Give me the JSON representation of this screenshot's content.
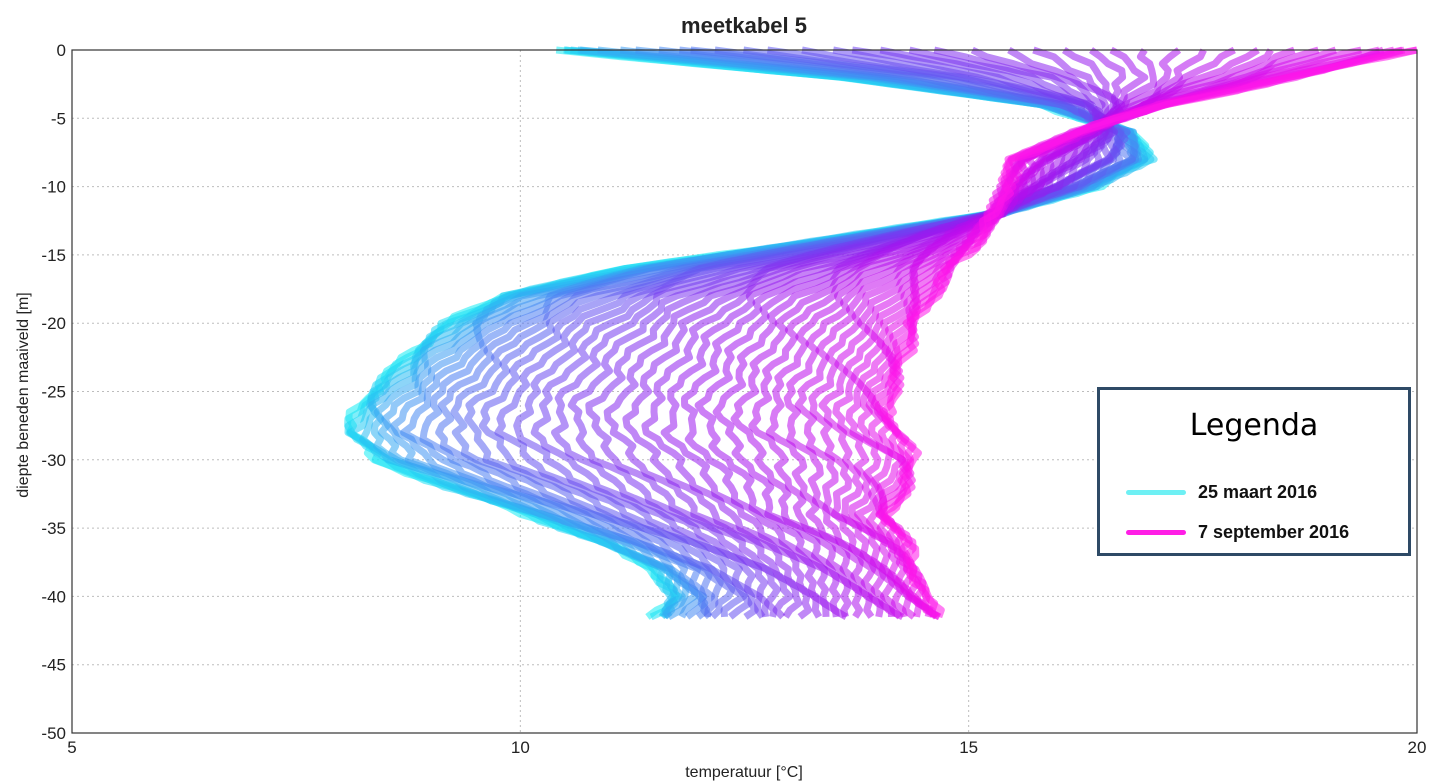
{
  "chart_data": {
    "type": "line",
    "title": "meetkabel 5",
    "xlabel": "temperatuur [°C]",
    "ylabel": "diepte beneden maaiveld [m]",
    "xlim": [
      5,
      20
    ],
    "ylim": [
      -50,
      0
    ],
    "xticks": [
      "5",
      "10",
      "15",
      "20"
    ],
    "yticks": [
      "0",
      "-5",
      "-10",
      "-15",
      "-20",
      "-25",
      "-30",
      "-35",
      "-40",
      "-45",
      "-50"
    ],
    "grid": true,
    "legend": {
      "title": "Legenda",
      "placement": "right",
      "entries": [
        {
          "label": "25 maart 2016",
          "color": "#6ef0f4"
        },
        {
          "label": "7 september 2016",
          "color": "#ff1ee6"
        }
      ]
    },
    "start_color": "#14ecf4",
    "end_color": "#ff16ea",
    "series": [
      {
        "name": "25 maart 2016",
        "depth": [
          0,
          -2,
          -4,
          -5,
          -6,
          -8,
          -10,
          -12,
          -14,
          -16,
          -18,
          -20,
          -22,
          -24,
          -26,
          -28,
          -30,
          -32,
          -34,
          -36,
          -38,
          -40,
          -41.5
        ],
        "temperature": [
          10.4,
          13.6,
          15.8,
          16.3,
          16.8,
          17.0,
          16.4,
          15.3,
          13.3,
          11.2,
          9.8,
          9.2,
          8.8,
          8.5,
          8.2,
          8.1,
          8.4,
          9.2,
          10.1,
          10.9,
          11.5,
          11.7,
          11.5
        ]
      },
      {
        "name": "7 september 2016",
        "depth": [
          0,
          -2,
          -4,
          -6,
          -8,
          -10,
          -12,
          -14,
          -16,
          -18,
          -20,
          -22,
          -24,
          -26,
          -28,
          -30,
          -32,
          -34,
          -36,
          -38,
          -40,
          -41.5
        ],
        "temperature": [
          20.0,
          18.6,
          17.2,
          16.2,
          15.5,
          15.4,
          15.3,
          15.1,
          14.8,
          14.6,
          14.4,
          14.3,
          14.2,
          14.1,
          14.2,
          14.4,
          14.3,
          14.1,
          14.3,
          14.4,
          14.5,
          14.7
        ]
      }
    ]
  }
}
